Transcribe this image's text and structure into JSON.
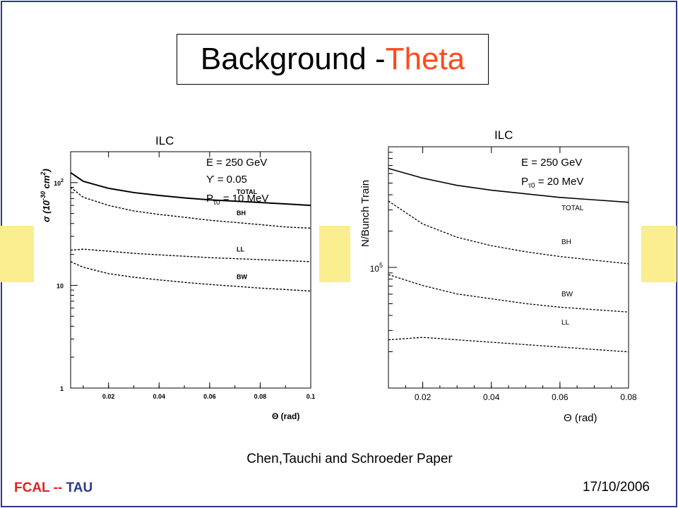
{
  "title": {
    "prefix": "Background - ",
    "accent": "Theta",
    "accent_color": "#ff4a1a"
  },
  "caption": "Chen,Tauchi and Schroeder Paper",
  "footer": {
    "left_main": "FCAL",
    "left_sep": " -- ",
    "left_tau": "TAU",
    "date": "17/10/2006"
  },
  "colors": {
    "frame": "#2b3a8c",
    "yellow_blocks": "#fbee8f"
  },
  "chart_data": [
    {
      "type": "line",
      "title": "ILC",
      "ylabel": "σ (10-30 cm2)",
      "xlabel": "Θ (rad)",
      "xlim": [
        0.005,
        0.1
      ],
      "ylim": [
        1,
        200
      ],
      "yscale": "log",
      "x_ticks": [
        "0.02",
        "0.04",
        "0.06",
        "0.08",
        "0.1"
      ],
      "y_ticks": [
        {
          "value": 1,
          "label": "1"
        },
        {
          "value": 10,
          "label": "10"
        },
        {
          "value": 100,
          "label": "10 2"
        }
      ],
      "annotations": [
        "E = 250 GeV",
        "ϒ = 0.05",
        "Pτ0 = 10 MeV"
      ],
      "x": [
        0.005,
        0.01,
        0.02,
        0.03,
        0.04,
        0.05,
        0.06,
        0.07,
        0.08,
        0.09,
        0.1
      ],
      "series": [
        {
          "name": "TOTAL",
          "style": "solid",
          "values": [
            125,
            103,
            88,
            80,
            75,
            71,
            68,
            66,
            64,
            62,
            60
          ]
        },
        {
          "name": "BH",
          "style": "dashed",
          "values": [
            90,
            72,
            60,
            53,
            49,
            46,
            43,
            41,
            39,
            37,
            36
          ]
        },
        {
          "name": "LL",
          "style": "dashed",
          "values": [
            22,
            22.5,
            21.5,
            20.5,
            19.8,
            19.2,
            18.6,
            18.2,
            17.8,
            17.4,
            17
          ]
        },
        {
          "name": "BW",
          "style": "dashed",
          "values": [
            17,
            15,
            13,
            12,
            11.3,
            10.7,
            10.2,
            9.8,
            9.4,
            9.1,
            8.8
          ]
        }
      ]
    },
    {
      "type": "line",
      "title": "ILC",
      "ylabel": "N/Bunch Train",
      "xlabel": "Θ (rad)",
      "xlim": [
        0.01,
        0.08
      ],
      "yscale": "log",
      "x_ticks": [
        "0.02",
        "0.04",
        "0.06",
        "0.08"
      ],
      "y_ticks": [
        {
          "value": 5,
          "label": "10 5"
        }
      ],
      "annotations": [
        "E = 250 GeV",
        "Pτ0 = 20 MeV"
      ],
      "x": [
        0.01,
        0.02,
        0.03,
        0.04,
        0.05,
        0.06,
        0.07,
        0.08
      ],
      "series": [
        {
          "name": "TOTAL",
          "style": "solid",
          "values": [
            5.82,
            5.74,
            5.68,
            5.64,
            5.61,
            5.58,
            5.56,
            5.54
          ]
        },
        {
          "name": "BH",
          "style": "dashed",
          "values": [
            5.55,
            5.36,
            5.25,
            5.18,
            5.13,
            5.09,
            5.06,
            5.03
          ]
        },
        {
          "name": "BW",
          "style": "dashed",
          "values": [
            4.94,
            4.85,
            4.78,
            4.74,
            4.7,
            4.67,
            4.65,
            4.63
          ]
        },
        {
          "name": "LL",
          "style": "dashed",
          "values": [
            4.4,
            4.42,
            4.4,
            4.38,
            4.36,
            4.34,
            4.32,
            4.3
          ]
        }
      ]
    }
  ]
}
